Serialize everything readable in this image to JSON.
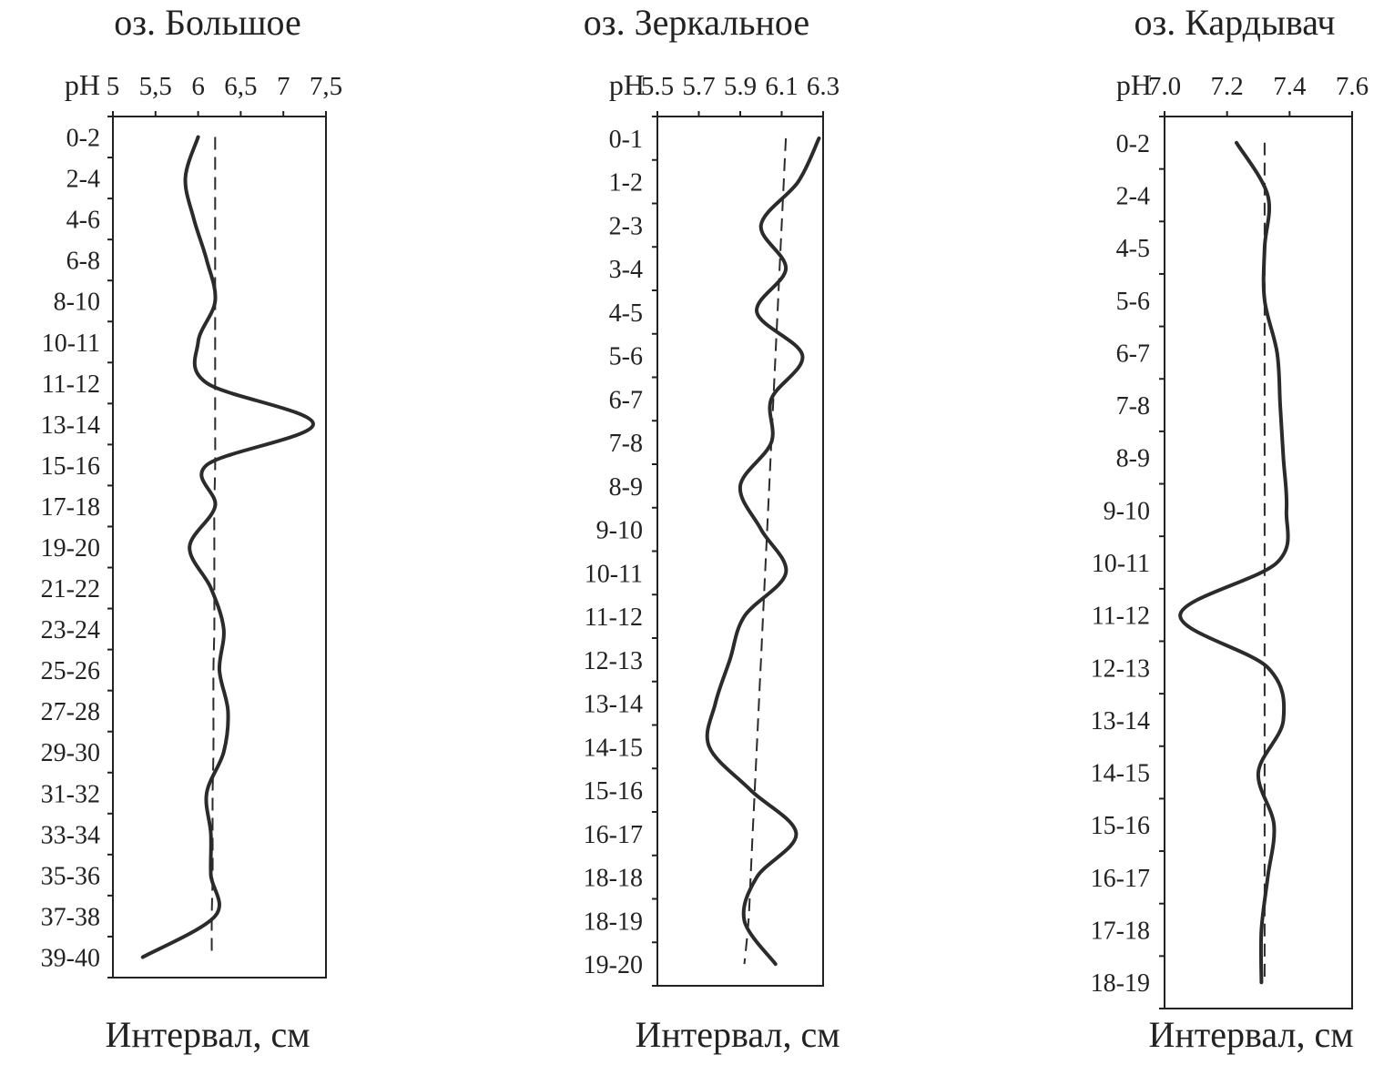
{
  "chart_data": [
    {
      "type": "line",
      "title": "оз. Большое",
      "xlabel": "pH",
      "ylabel": "Интервал, см",
      "x_ticks": [
        "5",
        "5,5",
        "6",
        "6,5",
        "7",
        "7,5"
      ],
      "x_tick_values": [
        5,
        5.5,
        6,
        6.5,
        7,
        7.5
      ],
      "xlim": [
        5,
        7.5
      ],
      "categories": [
        "0-2",
        "2-4",
        "4-6",
        "6-8",
        "8-10",
        "10-11",
        "11-12",
        "13-14",
        "15-16",
        "17-18",
        "19-20",
        "21-22",
        "23-24",
        "25-26",
        "27-28",
        "29-30",
        "31-32",
        "33-34",
        "35-36",
        "37-38",
        "39-40"
      ],
      "series": [
        {
          "style": "solid",
          "values": [
            6.0,
            5.85,
            5.95,
            6.1,
            6.2,
            6.0,
            6.1,
            7.35,
            6.1,
            6.2,
            5.9,
            6.15,
            6.3,
            6.25,
            6.35,
            6.3,
            6.1,
            6.15,
            6.15,
            6.2,
            5.35
          ]
        },
        {
          "style": "dashed",
          "values": [
            6.2,
            6.2,
            6.2,
            6.2,
            6.2,
            6.2,
            6.2,
            6.2,
            6.2,
            6.19,
            6.19,
            6.19,
            6.19,
            6.18,
            6.18,
            6.18,
            6.17,
            6.17,
            6.17,
            6.16,
            6.16
          ]
        }
      ],
      "grid": false
    },
    {
      "type": "line",
      "title": "оз. Зеркальное",
      "xlabel": "pH",
      "ylabel": "Интервал, см",
      "x_ticks": [
        "5.5",
        "5.7",
        "5.9",
        "6.1",
        "6.3"
      ],
      "x_tick_values": [
        5.5,
        5.7,
        5.9,
        6.1,
        6.3
      ],
      "xlim": [
        5.5,
        6.3
      ],
      "categories": [
        "0-1",
        "1-2",
        "2-3",
        "3-4",
        "4-5",
        "5-6",
        "6-7",
        "7-8",
        "8-9",
        "9-10",
        "10-11",
        "11-12",
        "12-13",
        "13-14",
        "14-15",
        "15-16",
        "16-17",
        "18-18",
        "18-19",
        "19-20"
      ],
      "series": [
        {
          "style": "solid",
          "values": [
            6.28,
            6.18,
            6.0,
            6.12,
            5.98,
            6.2,
            6.05,
            6.05,
            5.9,
            6.0,
            6.12,
            5.92,
            5.85,
            5.78,
            5.75,
            5.95,
            6.17,
            5.98,
            5.92,
            6.07
          ]
        },
        {
          "style": "dashed",
          "values": [
            6.12,
            6.11,
            6.1,
            6.09,
            6.08,
            6.07,
            6.06,
            6.05,
            6.04,
            6.03,
            6.02,
            6.01,
            6.0,
            5.99,
            5.98,
            5.97,
            5.96,
            5.95,
            5.94,
            5.92
          ]
        }
      ],
      "grid": false
    },
    {
      "type": "line",
      "title": "оз. Кардывач",
      "xlabel": "pH",
      "ylabel": "Интервал, см",
      "x_ticks": [
        "7.0",
        "7.2",
        "7.4",
        "7.6"
      ],
      "x_tick_values": [
        7.0,
        7.2,
        7.4,
        7.6
      ],
      "xlim": [
        7.0,
        7.6
      ],
      "categories": [
        "0-2",
        "2-4",
        "4-5",
        "5-6",
        "6-7",
        "7-8",
        "8-9",
        "9-10",
        "10-11",
        "11-12",
        "12-13",
        "13-14",
        "14-15",
        "15-16",
        "16-17",
        "17-18",
        "18-19"
      ],
      "series": [
        {
          "style": "solid",
          "values": [
            7.23,
            7.33,
            7.32,
            7.32,
            7.36,
            7.37,
            7.38,
            7.39,
            7.36,
            7.05,
            7.33,
            7.38,
            7.3,
            7.35,
            7.33,
            7.31,
            7.31
          ]
        },
        {
          "style": "dashed",
          "values": [
            7.32,
            7.32,
            7.32,
            7.32,
            7.32,
            7.32,
            7.32,
            7.32,
            7.32,
            7.32,
            7.32,
            7.32,
            7.32,
            7.32,
            7.32,
            7.32,
            7.32
          ]
        }
      ],
      "grid": false
    }
  ]
}
